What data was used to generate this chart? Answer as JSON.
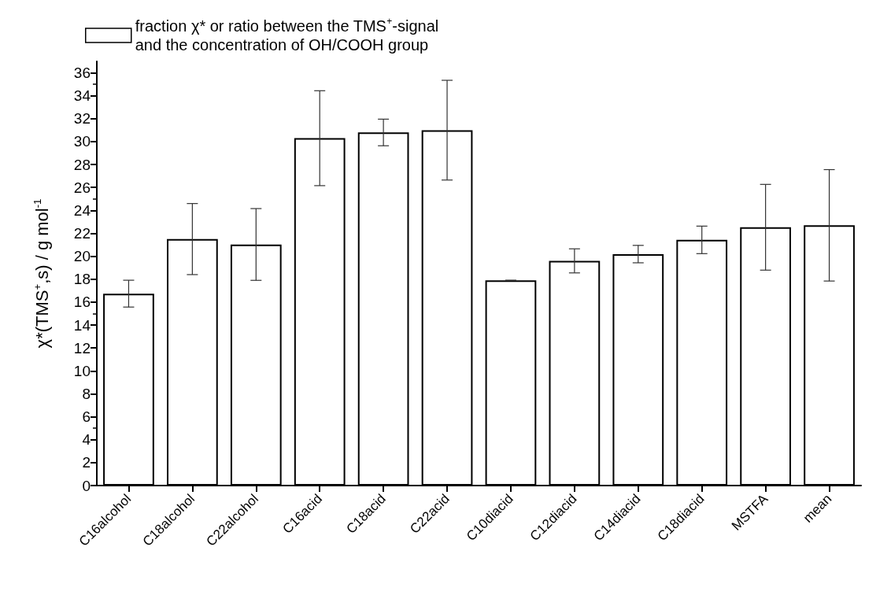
{
  "chart_data": {
    "type": "bar",
    "ylabel": "χ*(TMS$^{+}$,s) / g mol$^{-1}$",
    "categories": [
      "C16alcohol",
      "C18alcohol",
      "C22alcohol",
      "C16acid",
      "C18acid",
      "C22acid",
      "C10diacid",
      "C12diacid",
      "C14diacid",
      "C18diacid",
      "MSTFA",
      "mean"
    ],
    "series": [
      {
        "name": "fraction χ* or ratio between the TMS$^{+}$-signal\nand the concentration of OH/COOH group",
        "color": "#ffffff",
        "values": [
          16.74,
          21.5,
          21.03,
          30.3,
          30.8,
          31.0,
          17.9,
          19.6,
          20.19,
          21.43,
          22.53,
          22.7
        ],
        "errors": [
          1.17,
          3.1,
          3.13,
          4.14,
          1.16,
          4.35,
          0,
          1.05,
          0.76,
          1.2,
          3.74,
          4.86
        ]
      }
    ],
    "ylim": [
      0,
      37
    ],
    "yticks": [
      0,
      2,
      4,
      6,
      8,
      10,
      12,
      14,
      16,
      18,
      20,
      22,
      24,
      26,
      28,
      30,
      32,
      34,
      36
    ],
    "grid": false,
    "legend": "top left"
  }
}
